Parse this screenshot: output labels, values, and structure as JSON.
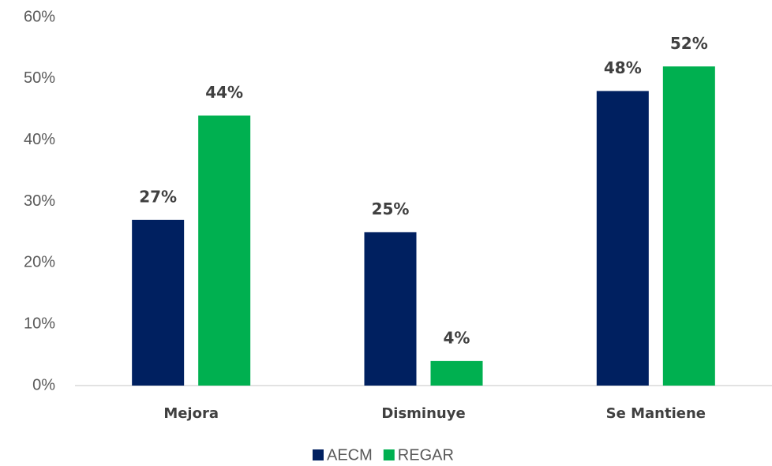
{
  "chart_data": {
    "type": "bar",
    "categories": [
      "Mejora",
      "Disminuye",
      "Se Mantiene"
    ],
    "series": [
      {
        "name": "AECM",
        "color": "#002060",
        "values": [
          27,
          25,
          48
        ],
        "value_labels": [
          "27%",
          "25%",
          "48%"
        ]
      },
      {
        "name": "REGAR",
        "color": "#00b050",
        "values": [
          44,
          4,
          52
        ],
        "value_labels": [
          "44%",
          "4%",
          "52%"
        ]
      }
    ],
    "ylim": [
      0,
      60
    ],
    "yticks": [
      {
        "value": 0,
        "label": "0%"
      },
      {
        "value": 10,
        "label": "10%"
      },
      {
        "value": 20,
        "label": "20%"
      },
      {
        "value": 30,
        "label": "30%"
      },
      {
        "value": 40,
        "label": "40%"
      },
      {
        "value": 50,
        "label": "50%"
      },
      {
        "value": 60,
        "label": "60%"
      }
    ],
    "grid": false,
    "legend": "bottom"
  }
}
